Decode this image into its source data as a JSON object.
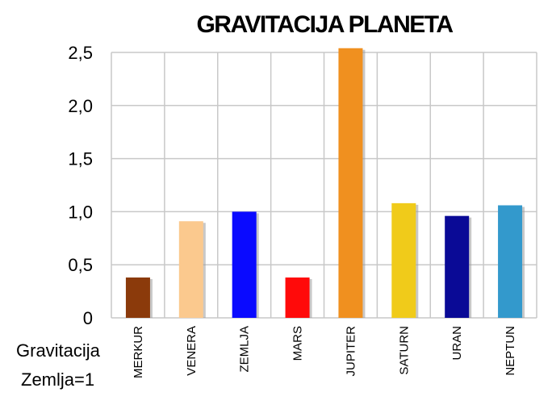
{
  "chart_data": {
    "type": "bar",
    "title": "GRAVITACIJA PLANETA",
    "categories": [
      "MERKUR",
      "VENERA",
      "ZEMLJA",
      "MARS",
      "JUPITER",
      "SATURN",
      "URAN",
      "NEPTUN"
    ],
    "values": [
      0.38,
      0.91,
      1.0,
      0.38,
      2.54,
      1.08,
      0.96,
      1.06
    ],
    "colors": [
      "#8b3a0b",
      "#fbc98e",
      "#0a0aff",
      "#ff0a0a",
      "#f0901f",
      "#f0cb1a",
      "#0a0a96",
      "#3399cc"
    ],
    "yticks": [
      0,
      0.5,
      1.0,
      1.5,
      2.0,
      2.5
    ],
    "ytick_labels": [
      "0",
      "0,5",
      "1,0",
      "1,5",
      "2,0",
      "2,5"
    ],
    "ylim": [
      0,
      2.5
    ],
    "ylabel_line1": "Gravitacija",
    "ylabel_line2": "Zemlja=1",
    "grid": true,
    "legend": "none"
  }
}
